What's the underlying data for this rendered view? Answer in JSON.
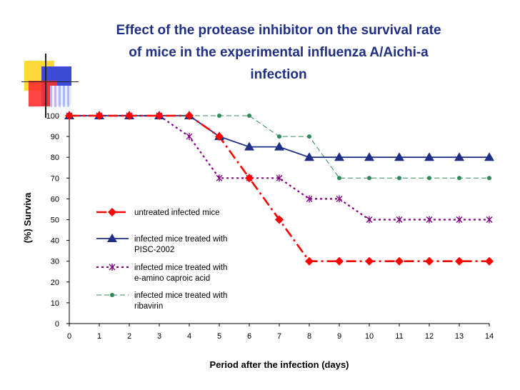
{
  "chart_data": {
    "type": "line",
    "title_lines": [
      "Effect of the protease inhibitor on the survival rate",
      "of mice in the experimental influenza A/Aichi-a",
      "infection"
    ],
    "xlabel": "Period after the infection (days)",
    "ylabel": "(%) Surviva",
    "x": [
      0,
      1,
      2,
      3,
      4,
      5,
      6,
      7,
      8,
      9,
      10,
      11,
      12,
      13,
      14
    ],
    "xlim": [
      0,
      14
    ],
    "ylim": [
      0,
      100
    ],
    "xticks": [
      0,
      1,
      2,
      3,
      4,
      5,
      6,
      7,
      8,
      9,
      10,
      11,
      12,
      13,
      14
    ],
    "yticks": [
      0,
      10,
      20,
      30,
      40,
      50,
      60,
      70,
      80,
      90,
      100
    ],
    "legend_position": "center-left",
    "series": [
      {
        "name": "untreated infected mice",
        "legend_lines": [
          "untreated infected mice"
        ],
        "values": [
          100,
          100,
          100,
          100,
          100,
          90,
          70,
          50,
          30,
          30,
          30,
          30,
          30,
          30,
          30
        ],
        "color": "#ff0000",
        "marker": "diamond",
        "style": "dashdot"
      },
      {
        "name": "infected mice treated with PISC-2002",
        "legend_lines": [
          "infected mice treated with",
          "PISC-2002"
        ],
        "values": [
          100,
          100,
          100,
          100,
          100,
          90,
          85,
          85,
          80,
          80,
          80,
          80,
          80,
          80,
          80
        ],
        "color": "#1f2f86",
        "marker": "triangle",
        "style": "solid"
      },
      {
        "name": "infected mice treated with e-amino caproic acid",
        "legend_lines": [
          "infected mice treated with",
          "e-amino caproic acid"
        ],
        "values": [
          100,
          100,
          100,
          100,
          90,
          70,
          70,
          70,
          60,
          60,
          50,
          50,
          50,
          50,
          50
        ],
        "color": "#800080",
        "marker": "star",
        "style": "dotted"
      },
      {
        "name": "infected mice treated with ribavirin",
        "legend_lines": [
          "infected mice treated with",
          "ribavirin"
        ],
        "values": [
          100,
          100,
          100,
          100,
          100,
          100,
          100,
          90,
          90,
          70,
          70,
          70,
          70,
          70,
          70
        ],
        "color": "#2e8b57",
        "marker": "circle",
        "style": "dashed"
      }
    ]
  }
}
